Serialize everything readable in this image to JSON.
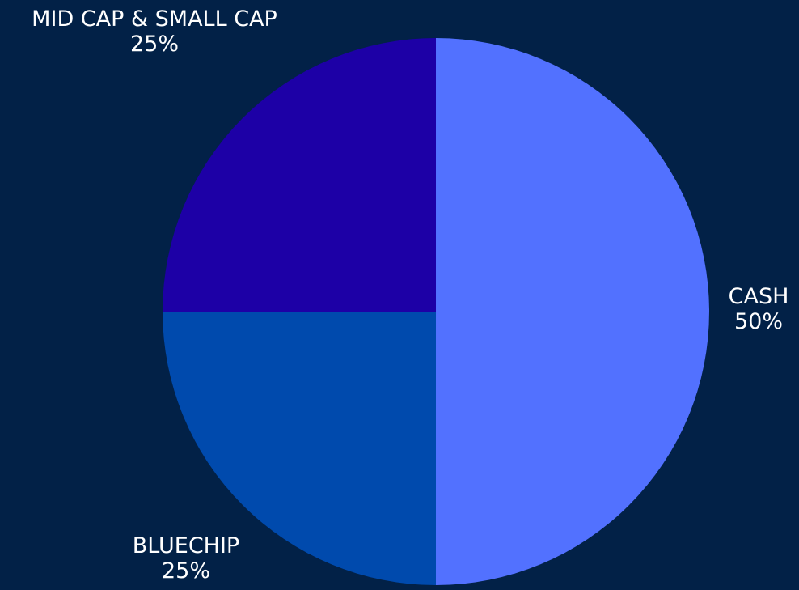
{
  "background_color": "#022147",
  "chart_data": {
    "type": "pie",
    "title": "",
    "slices": [
      {
        "label": "CASH",
        "value": 50,
        "percent_label": "50%",
        "color": "#5271FF"
      },
      {
        "label": "BLUECHIP",
        "value": 25,
        "percent_label": "25%",
        "color": "#004AAD"
      },
      {
        "label": "MID CAP & SMALL CAP",
        "value": 25,
        "percent_label": "25%",
        "color": "#1D00A6"
      }
    ],
    "start_angle_degrees": 0,
    "direction": "clockwise",
    "legend": "none"
  }
}
